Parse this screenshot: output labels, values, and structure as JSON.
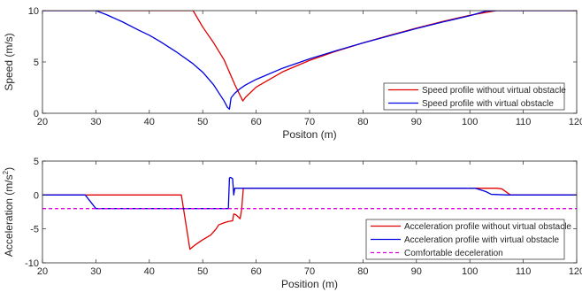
{
  "chart_data": [
    {
      "type": "line",
      "xlabel": "Positon (m)",
      "ylabel": "Speed (m/s)",
      "xlim": [
        20,
        120
      ],
      "ylim": [
        0,
        10
      ],
      "xticks": [
        20,
        30,
        40,
        50,
        60,
        70,
        80,
        90,
        100,
        110,
        120
      ],
      "yticks": [
        0,
        5,
        10
      ],
      "xtick_labels": [
        "20",
        "30",
        "40",
        "50",
        "60",
        "70",
        "80",
        "90",
        "100",
        "110",
        "120"
      ],
      "ytick_labels": [
        "0",
        "5",
        "10"
      ],
      "grid": false,
      "legend_position": "bottom-right",
      "series": [
        {
          "name": "Speed profile without virtual obstacle",
          "color": "#e00000",
          "x": [
            20,
            48.2,
            50,
            52,
            54,
            55,
            56,
            57.5,
            58,
            60,
            65,
            70,
            75,
            80,
            85,
            90,
            95,
            100,
            105,
            107.5,
            120
          ],
          "y": [
            10,
            10,
            8.4,
            6.9,
            5.2,
            4.0,
            2.8,
            1.2,
            1.55,
            2.55,
            4.05,
            5.15,
            6.05,
            6.85,
            7.6,
            8.3,
            8.95,
            9.55,
            10.0,
            10,
            10
          ]
        },
        {
          "name": "Speed profile with virtual obstacle",
          "color": "#0000e0",
          "x": [
            20,
            30,
            32,
            35,
            38,
            40,
            42,
            45,
            48,
            50,
            52,
            53,
            54,
            54.6,
            55,
            55.3,
            56,
            57,
            58,
            60,
            65,
            70,
            75,
            80,
            85,
            90,
            95,
            100,
            103,
            105,
            120
          ],
          "y": [
            10,
            10,
            9.6,
            8.9,
            8.1,
            7.6,
            7.0,
            6.0,
            4.9,
            4.0,
            2.8,
            2.0,
            1.2,
            0.6,
            0.4,
            1.5,
            1.95,
            2.4,
            2.75,
            3.3,
            4.4,
            5.3,
            6.1,
            6.85,
            7.55,
            8.25,
            8.9,
            9.5,
            9.95,
            10,
            10
          ]
        }
      ]
    },
    {
      "type": "line",
      "xlabel": "Position (m)",
      "ylabel": "Acceleration (m/s",
      "ylabel_sup": "2",
      "ylabel_end": ")",
      "xlim": [
        20,
        120
      ],
      "ylim": [
        -10,
        5
      ],
      "xticks": [
        20,
        30,
        40,
        50,
        60,
        70,
        80,
        90,
        100,
        110,
        120
      ],
      "yticks": [
        -10,
        -5,
        0,
        5
      ],
      "xtick_labels": [
        "20",
        "30",
        "40",
        "50",
        "60",
        "70",
        "80",
        "90",
        "100",
        "110",
        "120"
      ],
      "ytick_labels": [
        "-10",
        "-5",
        "0",
        "5"
      ],
      "grid": false,
      "legend_position": "bottom-right",
      "series": [
        {
          "name": "Acceleration profile without virtual obstacle",
          "color": "#e00000",
          "x": [
            20,
            28,
            29.5,
            46,
            47.6,
            48.5,
            50,
            51.5,
            52.5,
            53,
            54,
            54.8,
            55.6,
            55.8,
            56.2,
            56.6,
            57,
            57.3,
            57.6,
            100,
            105,
            106,
            107.6,
            120
          ],
          "y": [
            0,
            0,
            0,
            0,
            -8.0,
            -7.4,
            -6.6,
            -5.9,
            -5.0,
            -4.4,
            -4.1,
            -3.9,
            -3.8,
            -2.8,
            -2.9,
            -3.2,
            -3.5,
            -2.0,
            1.0,
            1.0,
            1.0,
            0.9,
            0,
            0
          ]
        },
        {
          "name": "Acceleration profile with virtual obstacle",
          "color": "#0000e0",
          "x": [
            20,
            28,
            30,
            54.8,
            55,
            55.2,
            55.6,
            55.8,
            56.0,
            56.3,
            101,
            103,
            104,
            107,
            120
          ],
          "y": [
            0,
            0,
            -2.0,
            -2.0,
            2.5,
            2.6,
            2.4,
            0,
            1.0,
            1.0,
            1.0,
            0.5,
            0.1,
            0,
            0
          ]
        },
        {
          "name": "Comfortable deceleration",
          "color": "#e000e0",
          "dash": true,
          "x": [
            20,
            120
          ],
          "y": [
            -2,
            -2
          ]
        }
      ]
    }
  ]
}
